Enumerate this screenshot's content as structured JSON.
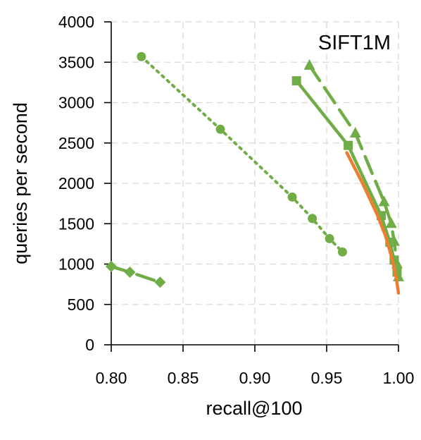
{
  "chart_data": {
    "type": "line",
    "title": "SIFT1M",
    "xlabel": "recall@100",
    "ylabel": "queries per second",
    "xlim": [
      0.8,
      1.0
    ],
    "ylim": [
      0,
      4000
    ],
    "x_ticks": [
      "0.80",
      "0.85",
      "0.90",
      "0.95",
      "1.00"
    ],
    "y_ticks": [
      "0",
      "500",
      "1000",
      "1500",
      "2000",
      "2500",
      "3000",
      "3500",
      "4000"
    ],
    "grid": true,
    "legend": "none",
    "series": [
      {
        "color": "#70AD47",
        "line": "dotted",
        "marker": "circle",
        "x": [
          0.821,
          0.876,
          0.926,
          0.94,
          0.952,
          0.961
        ],
        "y": [
          3570,
          2670,
          1830,
          1565,
          1315,
          1150
        ]
      },
      {
        "color": "#70AD47",
        "line": "dashed",
        "marker": "diamond",
        "x": [
          0.8,
          0.813,
          0.834
        ],
        "y": [
          970,
          900,
          775
        ]
      },
      {
        "color": "#70AD47",
        "line": "solid",
        "marker": "square",
        "x": [
          0.929,
          0.965,
          0.988,
          0.994,
          0.997,
          0.999
        ],
        "y": [
          3270,
          2470,
          1600,
          1270,
          1050,
          900
        ]
      },
      {
        "color": "#70AD47",
        "line": "dashed",
        "marker": "triangle",
        "x": [
          0.938,
          0.97,
          0.99,
          0.995,
          0.997,
          0.999,
          1.0
        ],
        "y": [
          3460,
          2620,
          1770,
          1500,
          1280,
          1000,
          840
        ]
      },
      {
        "color": "#ED7D31",
        "line": "solid",
        "marker": "none",
        "x": [
          0.964,
          0.975,
          0.985,
          0.991,
          0.995,
          0.998,
          1.0
        ],
        "y": [
          2380,
          2000,
          1620,
          1350,
          1100,
          880,
          640
        ]
      }
    ]
  }
}
